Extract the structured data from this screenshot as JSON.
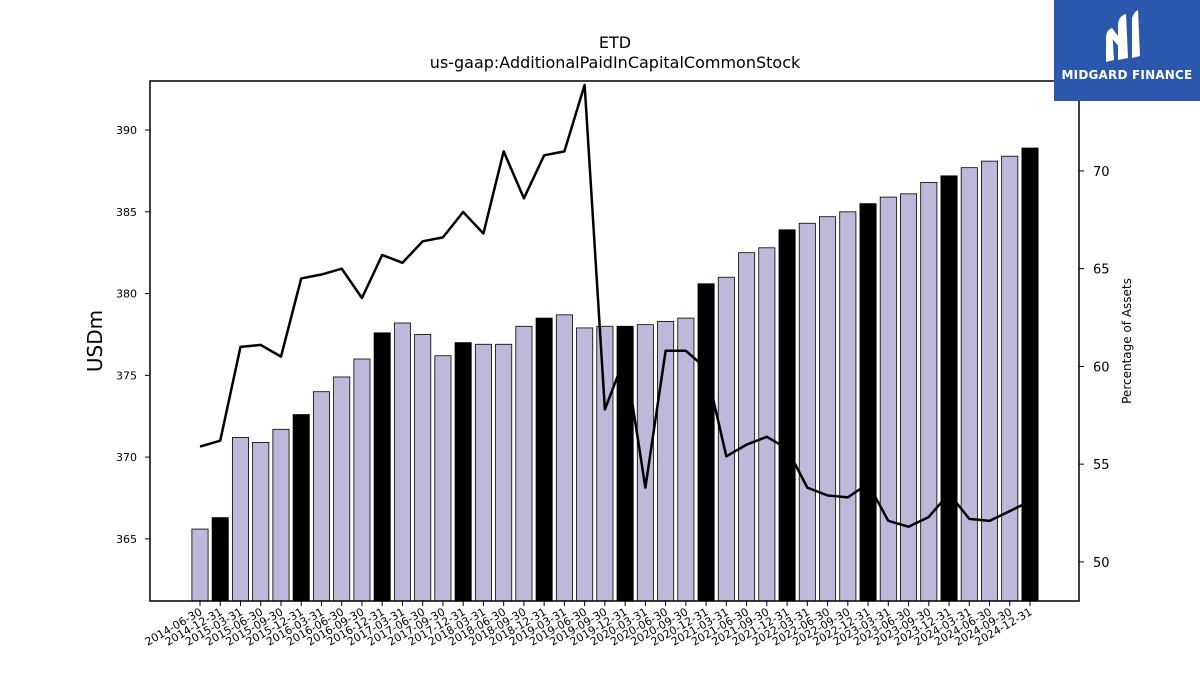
{
  "brand": {
    "name": "MIDGARD FINANCE",
    "logo_icon": "midgard-m-icon",
    "color": "#2b58ad"
  },
  "chart_data": {
    "type": "bar",
    "title": "ETD",
    "subtitle": "us-gaap:AdditionalPaidInCapitalCommonStock",
    "ylabel": "USDm",
    "y2label": "Percentage of Assets",
    "ylim": [
      361.2,
      393.0
    ],
    "y2lim": [
      48.0,
      74.6
    ],
    "yticks": [
      365,
      370,
      375,
      380,
      385,
      390
    ],
    "y2ticks": [
      50,
      55,
      60,
      65,
      70
    ],
    "categories": [
      "2014-06-30",
      "2014-12-31",
      "2015-03-31",
      "2015-06-30",
      "2015-09-30",
      "2015-12-31",
      "2016-03-31",
      "2016-06-30",
      "2016-09-30",
      "2016-12-31",
      "2017-03-31",
      "2017-06-30",
      "2017-09-30",
      "2017-12-31",
      "2018-03-31",
      "2018-06-30",
      "2018-09-30",
      "2018-12-31",
      "2019-03-31",
      "2019-06-30",
      "2019-09-30",
      "2019-12-31",
      "2020-03-31",
      "2020-06-30",
      "2020-09-30",
      "2020-12-31",
      "2021-03-31",
      "2021-06-30",
      "2021-09-30",
      "2021-12-31",
      "2022-03-31",
      "2022-06-30",
      "2022-09-30",
      "2022-12-31",
      "2023-03-31",
      "2023-06-30",
      "2023-09-30",
      "2023-12-31",
      "2024-03-31",
      "2024-06-30",
      "2024-09-30",
      "2024-12-31"
    ],
    "series": [
      {
        "type": "bar",
        "axis": "left",
        "values": [
          365.6,
          366.3,
          371.2,
          370.9,
          371.7,
          372.6,
          374.0,
          374.9,
          376.0,
          377.6,
          378.2,
          377.5,
          376.2,
          377.0,
          376.9,
          376.9,
          378.0,
          378.5,
          378.7,
          377.9,
          378.0,
          378.0,
          378.1,
          378.3,
          378.5,
          380.6,
          381.0,
          382.5,
          382.8,
          383.9,
          384.3,
          384.7,
          385.0,
          385.5,
          385.9,
          386.1,
          386.8,
          387.2,
          387.7,
          388.1,
          388.4,
          388.9
        ],
        "highlight_indices": [
          1,
          5,
          9,
          13,
          17,
          21,
          25,
          29,
          33,
          37,
          41
        ],
        "color": "#bcb9da",
        "highlight_color": "#000000"
      },
      {
        "type": "line",
        "axis": "right",
        "values": [
          55.9,
          56.2,
          61.0,
          61.1,
          60.5,
          64.5,
          64.7,
          65.0,
          63.5,
          65.7,
          65.3,
          66.4,
          66.6,
          67.9,
          66.8,
          71.0,
          68.6,
          70.8,
          71.0,
          74.4,
          57.8,
          60.5,
          53.8,
          60.8,
          60.8,
          59.9,
          55.4,
          56.0,
          56.4,
          55.8,
          53.8,
          53.4,
          53.3,
          54.0,
          52.1,
          51.8,
          52.3,
          53.5,
          52.2,
          52.1,
          52.6,
          53.1
        ],
        "color": "#000000"
      }
    ]
  }
}
